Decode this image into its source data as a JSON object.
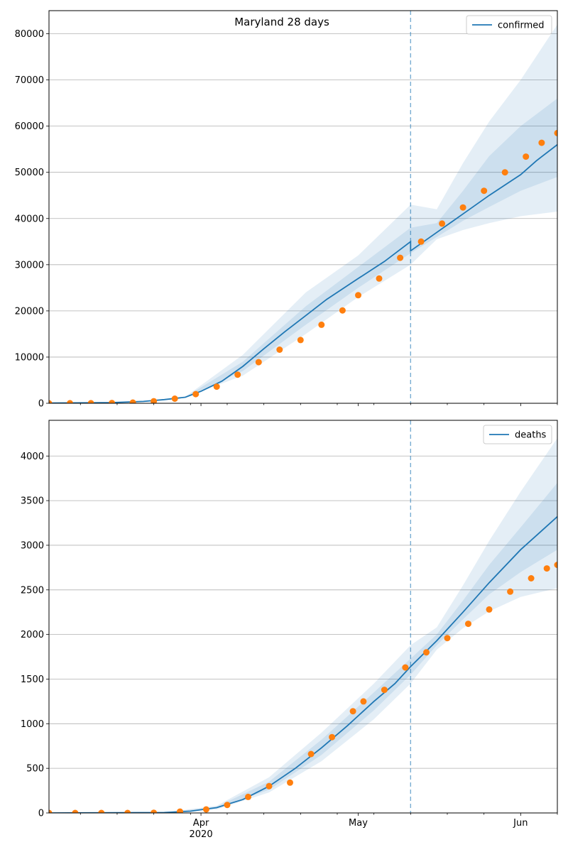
{
  "chart_data": [
    {
      "type": "line",
      "title": "Maryland 28 days",
      "xlabel": "",
      "ylabel": "",
      "x_range": [
        "2020-03-03",
        "2020-06-08"
      ],
      "ylim": [
        0,
        85000
      ],
      "y_ticks": [
        0,
        10000,
        20000,
        30000,
        40000,
        50000,
        60000,
        70000,
        80000
      ],
      "y_tick_labels": [
        "0",
        "10000",
        "20000",
        "30000",
        "40000",
        "50000",
        "60000",
        "70000",
        "80000"
      ],
      "grid": true,
      "legend": {
        "placement": "top-right",
        "entries": [
          "confirmed"
        ]
      },
      "forecast_start": "2020-05-11",
      "series": [
        {
          "name": "confirmed",
          "kind": "line",
          "x": [
            "2020-03-03",
            "2020-03-15",
            "2020-03-21",
            "2020-03-25",
            "2020-03-29",
            "2020-04-01",
            "2020-04-05",
            "2020-04-09",
            "2020-04-13",
            "2020-04-17",
            "2020-04-21",
            "2020-04-25",
            "2020-05-01",
            "2020-05-06",
            "2020-05-11",
            "2020-05-11",
            "2020-05-16",
            "2020-05-21",
            "2020-05-26",
            "2020-06-01",
            "2020-06-04",
            "2020-06-08"
          ],
          "y": [
            50,
            150,
            400,
            800,
            1300,
            2600,
            4800,
            8000,
            11800,
            15500,
            19000,
            22500,
            27000,
            30700,
            35000,
            33000,
            37000,
            41000,
            45000,
            49500,
            52500,
            56000
          ]
        },
        {
          "name": "observed confirmed",
          "kind": "scatter",
          "x": [
            "2020-03-03",
            "2020-03-07",
            "2020-03-11",
            "2020-03-15",
            "2020-03-19",
            "2020-03-23",
            "2020-03-27",
            "2020-03-31",
            "2020-04-04",
            "2020-04-08",
            "2020-04-12",
            "2020-04-16",
            "2020-04-20",
            "2020-04-24",
            "2020-04-28",
            "2020-05-01",
            "2020-05-05",
            "2020-05-09",
            "2020-05-13",
            "2020-05-17",
            "2020-05-21",
            "2020-05-25",
            "2020-05-29",
            "2020-06-02",
            "2020-06-05",
            "2020-06-08"
          ],
          "y": [
            0,
            10,
            20,
            60,
            150,
            450,
            1000,
            1990,
            3600,
            6200,
            8900,
            11600,
            13700,
            17000,
            20100,
            23400,
            27000,
            31500,
            35000,
            38900,
            42400,
            46000,
            50000,
            53400,
            56400,
            58500
          ]
        },
        {
          "name": "band-outer",
          "kind": "band",
          "x": [
            "2020-03-29",
            "2020-04-09",
            "2020-04-21",
            "2020-05-01",
            "2020-05-11",
            "2020-05-16",
            "2020-05-21",
            "2020-05-26",
            "2020-06-01",
            "2020-06-08"
          ],
          "lower": [
            1300,
            6000,
            15000,
            23000,
            30000,
            35500,
            37500,
            39000,
            40500,
            41500
          ],
          "upper": [
            1400,
            10500,
            24000,
            32000,
            43000,
            42000,
            52000,
            61000,
            70000,
            82000
          ]
        },
        {
          "name": "band-inner",
          "kind": "band",
          "x": [
            "2020-03-29",
            "2020-04-09",
            "2020-04-21",
            "2020-05-01",
            "2020-05-11",
            "2020-05-16",
            "2020-05-21",
            "2020-05-26",
            "2020-06-01",
            "2020-06-08"
          ],
          "lower": [
            1300,
            7000,
            17000,
            25000,
            32500,
            36000,
            39500,
            42500,
            46000,
            49000
          ],
          "upper": [
            1350,
            9000,
            21000,
            29500,
            38000,
            39000,
            46000,
            53500,
            60000,
            66000
          ]
        }
      ],
      "colors": {
        "line": "#1f77b4",
        "points": "#ff7f0e",
        "band": "#1f77b4"
      }
    },
    {
      "type": "line",
      "title": "",
      "xlabel": "",
      "ylabel": "",
      "x_range": [
        "2020-03-03",
        "2020-06-08"
      ],
      "ylim": [
        0,
        4400
      ],
      "y_ticks": [
        0,
        500,
        1000,
        1500,
        2000,
        2500,
        3000,
        3500,
        4000
      ],
      "y_tick_labels": [
        "0",
        "500",
        "1000",
        "1500",
        "2000",
        "2500",
        "3000",
        "3500",
        "4000"
      ],
      "x_tick_labels": [
        {
          "date": "2020-04-01",
          "label": "Apr",
          "sublabel": "2020"
        },
        {
          "date": "2020-05-01",
          "label": "May",
          "sublabel": ""
        },
        {
          "date": "2020-06-01",
          "label": "Jun",
          "sublabel": ""
        }
      ],
      "grid": true,
      "legend": {
        "placement": "top-right",
        "entries": [
          "deaths"
        ]
      },
      "forecast_start": "2020-05-11",
      "series": [
        {
          "name": "deaths",
          "kind": "line",
          "x": [
            "2020-03-03",
            "2020-03-25",
            "2020-03-30",
            "2020-04-04",
            "2020-04-09",
            "2020-04-14",
            "2020-04-19",
            "2020-04-24",
            "2020-04-29",
            "2020-05-04",
            "2020-05-08",
            "2020-05-11",
            "2020-05-16",
            "2020-05-21",
            "2020-05-26",
            "2020-06-01",
            "2020-06-08"
          ],
          "y": [
            0,
            5,
            20,
            60,
            150,
            300,
            500,
            730,
            980,
            1250,
            1450,
            1640,
            1930,
            2250,
            2580,
            2950,
            3320
          ]
        },
        {
          "name": "observed deaths",
          "kind": "scatter",
          "x": [
            "2020-03-03",
            "2020-03-08",
            "2020-03-13",
            "2020-03-18",
            "2020-03-23",
            "2020-03-28",
            "2020-04-02",
            "2020-04-06",
            "2020-04-10",
            "2020-04-14",
            "2020-04-18",
            "2020-04-22",
            "2020-04-26",
            "2020-04-30",
            "2020-05-02",
            "2020-05-06",
            "2020-05-10",
            "2020-05-14",
            "2020-05-18",
            "2020-05-22",
            "2020-05-26",
            "2020-05-30",
            "2020-06-03",
            "2020-06-06",
            "2020-06-08"
          ],
          "y": [
            0,
            0,
            0,
            0,
            2,
            15,
            40,
            90,
            180,
            300,
            340,
            660,
            850,
            1140,
            1250,
            1380,
            1630,
            1800,
            1960,
            2120,
            2280,
            2480,
            2630,
            2740,
            2780
          ]
        },
        {
          "name": "band-outer",
          "kind": "band",
          "x": [
            "2020-03-25",
            "2020-04-04",
            "2020-04-14",
            "2020-04-24",
            "2020-05-04",
            "2020-05-11",
            "2020-05-16",
            "2020-05-21",
            "2020-05-26",
            "2020-06-01",
            "2020-06-08"
          ],
          "lower": [
            5,
            40,
            230,
            580,
            1050,
            1450,
            1830,
            2070,
            2260,
            2420,
            2520
          ],
          "upper": [
            5,
            80,
            400,
            900,
            1450,
            1880,
            2080,
            2550,
            3050,
            3600,
            4200
          ]
        },
        {
          "name": "band-inner",
          "kind": "band",
          "x": [
            "2020-03-25",
            "2020-04-04",
            "2020-04-14",
            "2020-04-24",
            "2020-05-04",
            "2020-05-11",
            "2020-05-16",
            "2020-05-21",
            "2020-05-26",
            "2020-06-01",
            "2020-06-08"
          ],
          "lower": [
            5,
            50,
            260,
            650,
            1150,
            1550,
            1880,
            2170,
            2450,
            2700,
            2950
          ],
          "upper": [
            5,
            70,
            350,
            820,
            1350,
            1730,
            2000,
            2380,
            2780,
            3200,
            3700
          ]
        }
      ],
      "colors": {
        "line": "#1f77b4",
        "points": "#ff7f0e",
        "band": "#1f77b4"
      }
    }
  ]
}
